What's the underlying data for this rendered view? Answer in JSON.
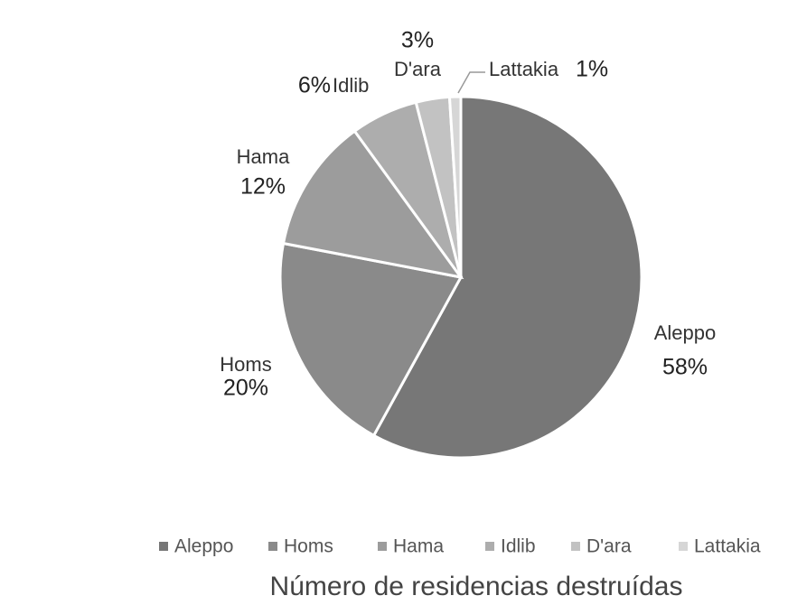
{
  "chart_data": {
    "type": "pie",
    "title": "Número de residencias destruídas",
    "categories": [
      "Aleppo",
      "Homs",
      "Hama",
      "Idlib",
      "D'ara",
      "Lattakia"
    ],
    "values": [
      58,
      20,
      12,
      6,
      3,
      1
    ],
    "value_labels": [
      "58%",
      "20%",
      "12%",
      "6%",
      "3%",
      "1%"
    ],
    "colors": [
      "#777777",
      "#8a8a8a",
      "#9c9c9c",
      "#adadad",
      "#c2c2c2",
      "#d6d6d6"
    ],
    "legend": "bottom"
  }
}
